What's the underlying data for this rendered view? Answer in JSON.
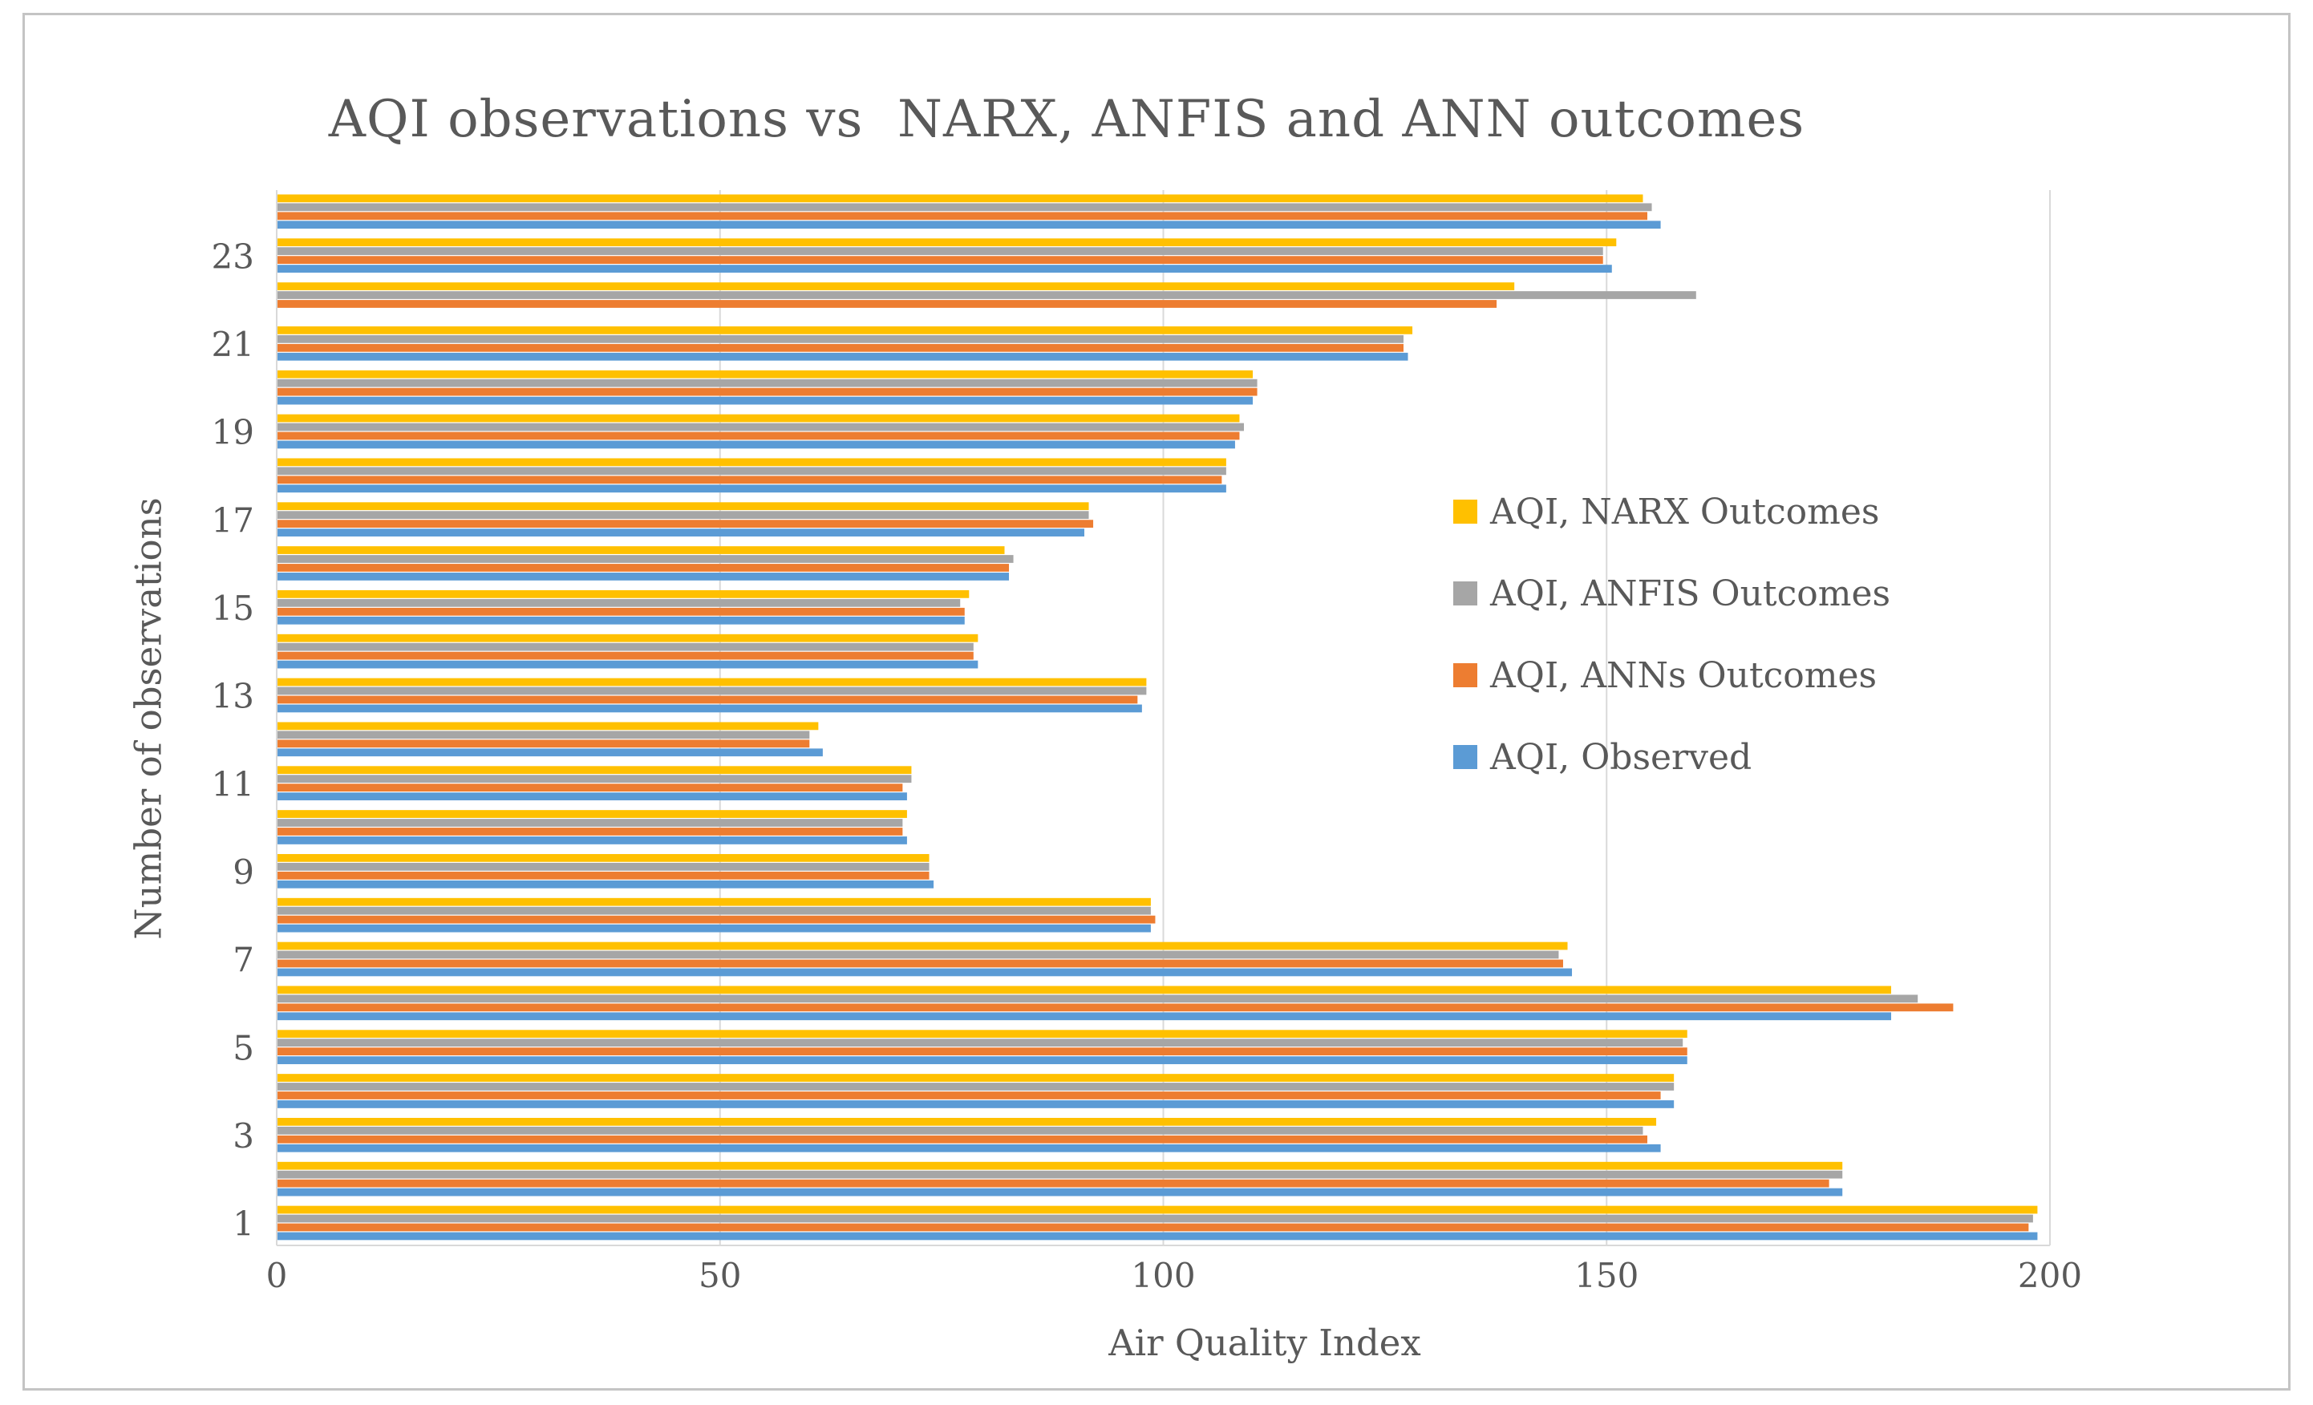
{
  "chart_data": {
    "type": "bar",
    "orientation": "horizontal",
    "title": "AQI observations vs  NARX, ANFIS and ANN outcomes",
    "xlabel": "Air Quality Index",
    "ylabel": "Number of observations",
    "xlim": [
      0,
      200
    ],
    "x_ticks": [
      0,
      50,
      100,
      150,
      200
    ],
    "y_tick_step_note": "category labels shown for odd observations only",
    "grid": true,
    "legend_position": "middle-right",
    "categories": [
      1,
      2,
      3,
      4,
      5,
      6,
      7,
      8,
      9,
      10,
      11,
      12,
      13,
      14,
      15,
      16,
      17,
      18,
      19,
      20,
      21,
      22,
      23,
      24
    ],
    "series": [
      {
        "name": "AQI, NARX Outcomes",
        "color": "#FFC000",
        "values": [
          198.5,
          176.5,
          155.5,
          157.5,
          159,
          182,
          145.5,
          98.5,
          73.5,
          71,
          71.5,
          61,
          98,
          79,
          78,
          82,
          91.5,
          107,
          108.5,
          110,
          128,
          139.5,
          151,
          154
        ]
      },
      {
        "name": "AQI, ANFIS Outcomes",
        "color": "#A6A6A6",
        "values": [
          198,
          176.5,
          154,
          157.5,
          158.5,
          185,
          144.5,
          98.5,
          73.5,
          70.5,
          71.5,
          60,
          98,
          78.5,
          77,
          83,
          91.5,
          107,
          109,
          110.5,
          127,
          160,
          149.5,
          155
        ]
      },
      {
        "name": "AQI, ANNs Outcomes",
        "color": "#ED7D31",
        "values": [
          197.5,
          175,
          154.5,
          156,
          159,
          189,
          145,
          99,
          73.5,
          70.5,
          70.5,
          60,
          97,
          78.5,
          77.5,
          82.5,
          92,
          106.5,
          108.5,
          110.5,
          127,
          137.5,
          149.5,
          154.5
        ]
      },
      {
        "name": "AQI, Observed",
        "color": "#5B9BD5",
        "values": [
          198.5,
          176.5,
          156,
          157.5,
          159,
          182,
          146,
          98.5,
          74,
          71,
          71,
          61.5,
          97.5,
          79,
          77.5,
          82.5,
          91,
          107,
          108,
          110,
          127.5,
          0,
          150.5,
          156
        ]
      }
    ]
  },
  "colors": {
    "text": "#595959",
    "gridline": "#D9D9D9",
    "axis_line": "#D9D9D9",
    "frame_border": "#C4C4C4",
    "background": "#FFFFFF"
  }
}
